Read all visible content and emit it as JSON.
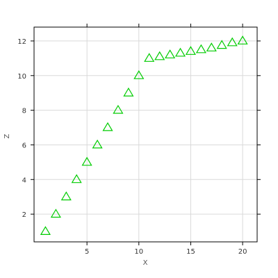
{
  "chart_data": {
    "type": "scatter",
    "title": "",
    "xlabel": "X",
    "ylabel": "Z",
    "xlim": [
      -0.1,
      21.4
    ],
    "ylim": [
      0.4,
      12.8
    ],
    "x_ticks": [
      5,
      10,
      15,
      20
    ],
    "y_ticks": [
      2,
      4,
      6,
      8,
      10,
      12
    ],
    "grid": true,
    "legend": "none",
    "marker": "open-triangle",
    "colors": {
      "series": "#00cc00",
      "grid": "#d9d9d9",
      "frame": "#000000"
    },
    "series": [
      {
        "x": [
          1,
          2,
          3,
          4,
          5,
          6,
          7,
          8,
          9,
          10,
          11,
          12,
          13,
          14,
          15,
          16,
          17,
          18,
          19,
          20
        ],
        "y": [
          1,
          2,
          3,
          4,
          5,
          6,
          7,
          8,
          9,
          10,
          11,
          11.1,
          11.2,
          11.3,
          11.4,
          11.5,
          11.6,
          11.75,
          11.9,
          12
        ]
      }
    ]
  }
}
